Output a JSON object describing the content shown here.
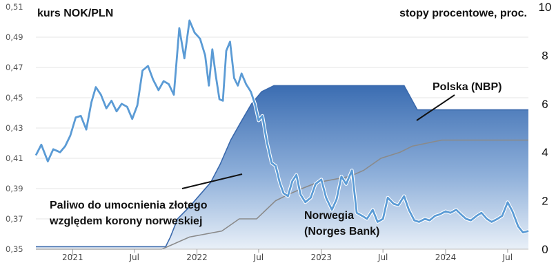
{
  "chart_data": {
    "type": "line",
    "title_left": "kurs NOK/PLN",
    "title_right": "stopy procentowe, proc.",
    "y_left": {
      "ticks": [
        "0,35",
        "0,37",
        "0,39",
        "0,41",
        "0,43",
        "0,45",
        "0,47",
        "0,49",
        "0,51"
      ],
      "range": [
        0.35,
        0.51
      ]
    },
    "y_right": {
      "ticks": [
        "0",
        "2",
        "4",
        "6",
        "8",
        "10"
      ],
      "range": [
        0,
        10
      ]
    },
    "x_range": [
      "2020-09-15",
      "2024-08-31"
    ],
    "x_ticks": [
      {
        "label": "2021",
        "date": "2021-01-01",
        "major": true
      },
      {
        "label": "Jul",
        "date": "2021-07-01",
        "major": false
      },
      {
        "label": "2022",
        "date": "2022-01-01",
        "major": true
      },
      {
        "label": "Jul",
        "date": "2022-07-01",
        "major": false
      },
      {
        "label": "2023",
        "date": "2023-01-01",
        "major": true
      },
      {
        "label": "Jul",
        "date": "2023-07-01",
        "major": false
      },
      {
        "label": "2024",
        "date": "2024-01-01",
        "major": true
      },
      {
        "label": "Jul",
        "date": "2024-07-01",
        "major": false
      }
    ],
    "grid": true,
    "series": [
      {
        "name": "kurs NOK/PLN",
        "axis": "left",
        "style": "line",
        "color": "#5b9bd5",
        "x": [
          "2020-09-15",
          "2020-10-01",
          "2020-10-20",
          "2020-11-05",
          "2020-11-25",
          "2020-12-10",
          "2020-12-25",
          "2021-01-10",
          "2021-01-25",
          "2021-02-10",
          "2021-02-25",
          "2021-03-10",
          "2021-03-25",
          "2021-04-10",
          "2021-04-25",
          "2021-05-10",
          "2021-05-25",
          "2021-06-10",
          "2021-06-25",
          "2021-07-10",
          "2021-07-25",
          "2021-08-10",
          "2021-08-25",
          "2021-09-10",
          "2021-09-25",
          "2021-10-10",
          "2021-10-25",
          "2021-11-10",
          "2021-11-25",
          "2021-12-10",
          "2021-12-25",
          "2022-01-10",
          "2022-01-25",
          "2022-02-05",
          "2022-02-15",
          "2022-02-25",
          "2022-03-08",
          "2022-03-18",
          "2022-03-28",
          "2022-04-08",
          "2022-04-20",
          "2022-05-01",
          "2022-05-12",
          "2022-05-25",
          "2022-06-08",
          "2022-06-20",
          "2022-07-01",
          "2022-07-12",
          "2022-07-25",
          "2022-08-08",
          "2022-08-20",
          "2022-09-01",
          "2022-09-12",
          "2022-09-25",
          "2022-10-08",
          "2022-10-20",
          "2022-11-01",
          "2022-11-15",
          "2022-12-01",
          "2022-12-15",
          "2023-01-01",
          "2023-01-15",
          "2023-02-01",
          "2023-02-15",
          "2023-03-01",
          "2023-03-15",
          "2023-04-01",
          "2023-04-15",
          "2023-05-01",
          "2023-05-15",
          "2023-06-01",
          "2023-06-15",
          "2023-07-01",
          "2023-07-15",
          "2023-08-01",
          "2023-08-15",
          "2023-09-01",
          "2023-09-15",
          "2023-10-01",
          "2023-10-15",
          "2023-11-01",
          "2023-11-15",
          "2023-12-01",
          "2023-12-15",
          "2024-01-01",
          "2024-01-15",
          "2024-02-01",
          "2024-02-15",
          "2024-03-01",
          "2024-03-15",
          "2024-04-01",
          "2024-04-15",
          "2024-05-01",
          "2024-05-15",
          "2024-06-01",
          "2024-06-15",
          "2024-07-01",
          "2024-07-15",
          "2024-08-01",
          "2024-08-15",
          "2024-08-31"
        ],
        "y": [
          0.412,
          0.419,
          0.408,
          0.416,
          0.414,
          0.418,
          0.425,
          0.437,
          0.438,
          0.429,
          0.447,
          0.457,
          0.452,
          0.443,
          0.448,
          0.441,
          0.446,
          0.444,
          0.436,
          0.445,
          0.468,
          0.471,
          0.462,
          0.455,
          0.461,
          0.459,
          0.452,
          0.496,
          0.476,
          0.501,
          0.493,
          0.489,
          0.478,
          0.458,
          0.482,
          0.465,
          0.449,
          0.448,
          0.481,
          0.487,
          0.463,
          0.458,
          0.466,
          0.459,
          0.454,
          0.446,
          0.435,
          0.438,
          0.421,
          0.407,
          0.405,
          0.394,
          0.387,
          0.385,
          0.395,
          0.399,
          0.386,
          0.381,
          0.384,
          0.393,
          0.396,
          0.384,
          0.376,
          0.383,
          0.398,
          0.393,
          0.402,
          0.374,
          0.372,
          0.37,
          0.376,
          0.368,
          0.37,
          0.384,
          0.38,
          0.379,
          0.385,
          0.376,
          0.369,
          0.368,
          0.37,
          0.369,
          0.372,
          0.373,
          0.375,
          0.374,
          0.376,
          0.373,
          0.37,
          0.369,
          0.372,
          0.374,
          0.37,
          0.368,
          0.37,
          0.372,
          0.381,
          0.375,
          0.365,
          0.361,
          0.362
        ]
      },
      {
        "name": "Polska (NBP)",
        "axis": "right",
        "style": "area",
        "color": "#3d6fb5",
        "x": [
          "2020-09-15",
          "2021-10-01",
          "2021-10-15",
          "2021-11-05",
          "2021-12-10",
          "2022-01-10",
          "2022-02-10",
          "2022-03-10",
          "2022-04-10",
          "2022-05-10",
          "2022-06-10",
          "2022-07-10",
          "2022-08-15",
          "2022-09-10",
          "2022-10-01",
          "2023-09-01",
          "2023-10-10",
          "2024-08-31"
        ],
        "y": [
          0.1,
          0.1,
          0.5,
          1.25,
          1.75,
          2.25,
          2.75,
          3.5,
          4.5,
          5.25,
          6.0,
          6.5,
          6.75,
          6.75,
          6.75,
          6.75,
          5.75,
          5.75
        ]
      },
      {
        "name": "Norwegia (Norges Bank)",
        "axis": "right",
        "style": "area",
        "color": "#a6a6a6",
        "x": [
          "2020-09-15",
          "2021-09-20",
          "2021-12-10",
          "2022-03-15",
          "2022-05-05",
          "2022-06-25",
          "2022-08-20",
          "2022-09-25",
          "2022-11-05",
          "2022-12-20",
          "2023-03-25",
          "2023-05-05",
          "2023-06-25",
          "2023-08-20",
          "2023-09-25",
          "2023-12-20",
          "2024-08-31"
        ],
        "y": [
          0.0,
          0.0,
          0.5,
          0.75,
          1.25,
          1.25,
          2.0,
          2.25,
          2.5,
          2.75,
          3.0,
          3.25,
          3.75,
          4.0,
          4.25,
          4.5,
          4.5
        ]
      }
    ],
    "annotations": [
      {
        "text_lines": [
          "Polska (NBP)"
        ]
      },
      {
        "text_lines": [
          "Norwegia",
          "(Norges Bank)"
        ]
      },
      {
        "text_lines": [
          "Paliwo do umocnienia złotego",
          "względem korony norweskiej"
        ]
      }
    ]
  }
}
